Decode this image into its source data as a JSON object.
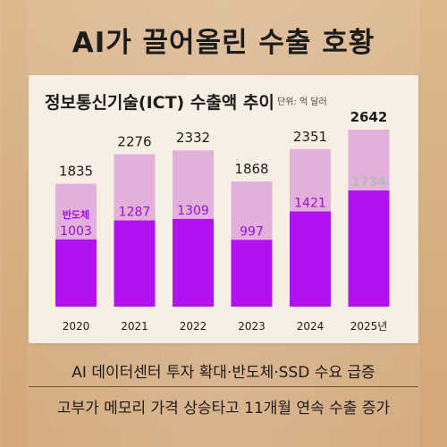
{
  "headline": "AI가 끌어올린 수출 호황",
  "captions": [
    "AI 데이터센터 투자 확대·반도체·SSD 수요 급증",
    "고부가 메모리 가격 상승타고 11개월 연속 수출 증가"
  ],
  "colors": {
    "total_bar": "#e3b0dc",
    "semiconductor_bar": "#b312f0",
    "semiconductor_label": "#9a10d6",
    "highlight_label": "#b9b9b9",
    "card": "#f7efe4"
  },
  "chart_data": {
    "type": "bar",
    "title": "정보통신기술(ICT) 수출액 추이",
    "unit": "단위: 억 달러",
    "categories": [
      "2020",
      "2021",
      "2022",
      "2023",
      "2024",
      "2025년"
    ],
    "series": [
      {
        "name": "",
        "values": [
          1835,
          2276,
          2332,
          1868,
          2351,
          2642
        ]
      },
      {
        "name": "반도체",
        "values": [
          1003,
          1287,
          1309,
          997,
          1421,
          1734
        ]
      }
    ],
    "total_labels": [
      "1835",
      "2276",
      "2332",
      "1868",
      "2351",
      "2642"
    ],
    "semi_labels": [
      "1003",
      "1287",
      "1309",
      "997",
      "1421",
      "1734"
    ],
    "semi_series_label": "반도체",
    "ylim": [
      0,
      2642
    ],
    "grid": false,
    "legend": "none"
  }
}
